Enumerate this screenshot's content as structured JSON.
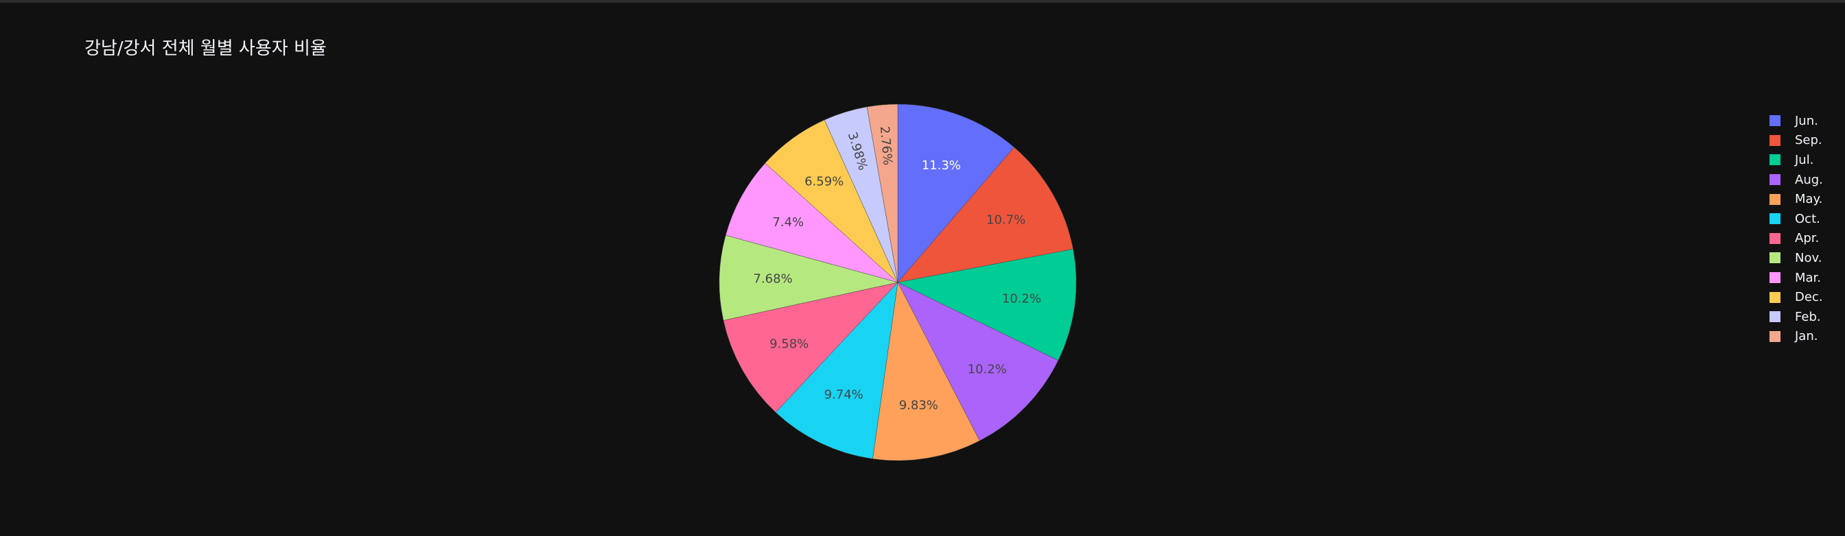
{
  "chart_data": {
    "type": "pie",
    "title": "강남/강서 전체 월별 사용자 비율",
    "slices": [
      {
        "label": "Jun.",
        "percent_text": "11.3%",
        "value": 11.3,
        "color": "#636efa"
      },
      {
        "label": "Sep.",
        "percent_text": "10.7%",
        "value": 10.7,
        "color": "#ef553b"
      },
      {
        "label": "Jul.",
        "percent_text": "10.2%",
        "value": 10.2,
        "color": "#00cc96"
      },
      {
        "label": "Aug.",
        "percent_text": "10.2%",
        "value": 10.2,
        "color": "#ab63fa"
      },
      {
        "label": "May.",
        "percent_text": "9.83%",
        "value": 9.83,
        "color": "#ffa15a"
      },
      {
        "label": "Oct.",
        "percent_text": "9.74%",
        "value": 9.74,
        "color": "#19d3f3"
      },
      {
        "label": "Apr.",
        "percent_text": "9.58%",
        "value": 9.58,
        "color": "#ff6692"
      },
      {
        "label": "Nov.",
        "percent_text": "7.68%",
        "value": 7.68,
        "color": "#b6e880"
      },
      {
        "label": "Mar.",
        "percent_text": "7.4%",
        "value": 7.4,
        "color": "#ff97ff"
      },
      {
        "label": "Dec.",
        "percent_text": "6.59%",
        "value": 6.59,
        "color": "#fecb52"
      },
      {
        "label": "Feb.",
        "percent_text": "3.98%",
        "value": 3.98,
        "color": "#c6cafd"
      },
      {
        "label": "Jan.",
        "percent_text": "2.76%",
        "value": 2.76,
        "color": "#f4a78c"
      }
    ],
    "direction": "clockwise",
    "legend_position": "right",
    "background": "#111111"
  }
}
